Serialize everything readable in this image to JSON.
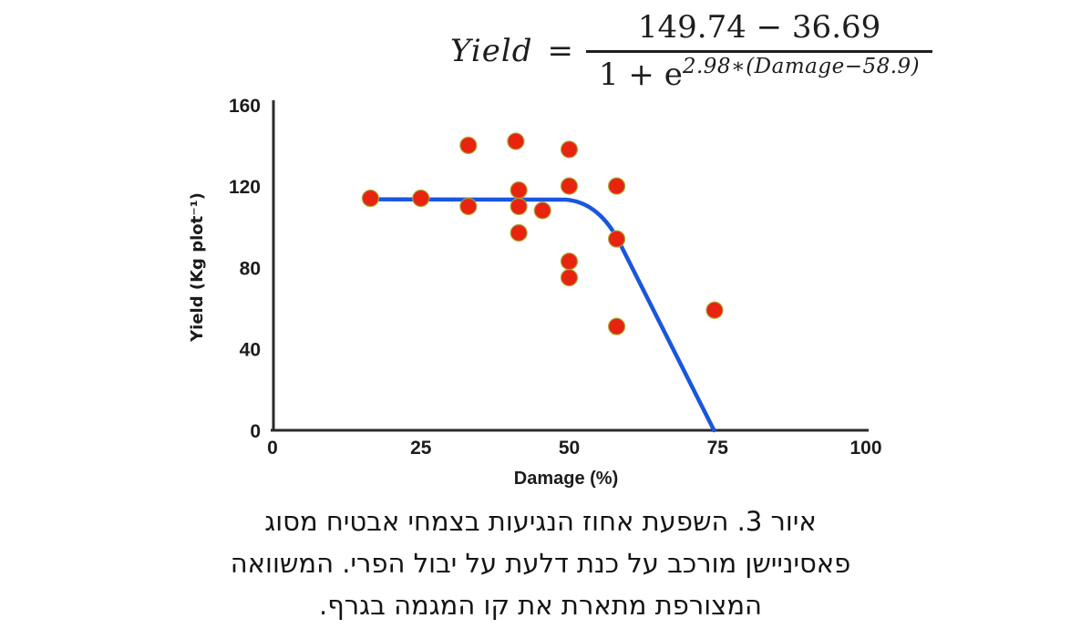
{
  "formula": {
    "lhs": "Yield",
    "equals": "=",
    "numerator": "149.74 − 36.69",
    "denominator_base": "1 + e",
    "exponent": {
      "coeff": "2.98∗(",
      "var": "Damage",
      "rest": "−58.9)"
    }
  },
  "chart_data": {
    "type": "scatter",
    "title": "",
    "xlabel": "Damage (%)",
    "ylabel": "Yield (Kg plot⁻¹)",
    "xlim": [
      0,
      100
    ],
    "ylim": [
      0,
      160
    ],
    "x_ticks": [
      0,
      25,
      50,
      75,
      100
    ],
    "y_ticks": [
      0,
      40,
      80,
      120,
      160
    ],
    "grid": false,
    "legend": "none",
    "points": [
      [
        16.5,
        114
      ],
      [
        25,
        114
      ],
      [
        33,
        140
      ],
      [
        33,
        110
      ],
      [
        41,
        142
      ],
      [
        41.5,
        118
      ],
      [
        41.5,
        110
      ],
      [
        41.5,
        97
      ],
      [
        45.5,
        108
      ],
      [
        50,
        138
      ],
      [
        50,
        120
      ],
      [
        50,
        83
      ],
      [
        50,
        75
      ],
      [
        58,
        120
      ],
      [
        58,
        94
      ],
      [
        58,
        51
      ],
      [
        74.5,
        59
      ]
    ],
    "trend_line": {
      "description": "flat plateau then logistic-style decline to zero",
      "flat_start": [
        16.4,
        113.5
      ],
      "bend_start": [
        49.5,
        113.3
      ],
      "curve_control": [
        54.8,
        112.0
      ],
      "curve_end": [
        58.2,
        93.8
      ],
      "zero_crossing": [
        74.4,
        0
      ]
    },
    "colors": {
      "points": "#e8230f",
      "point_edge": "#a8a832",
      "trend": "#1b55e0",
      "axis": "#2b2b2b",
      "text": "#1a1a1a"
    }
  },
  "caption": {
    "lines": [
      "איור 3. השפעת אחוז הנגיעות בצמחי אבטיח מסוג",
      "פאסיניישן מורכב על כנת דלעת על יבול הפרי. המשוואה",
      "המצורפת מתארת את קו המגמה בגרף."
    ]
  }
}
